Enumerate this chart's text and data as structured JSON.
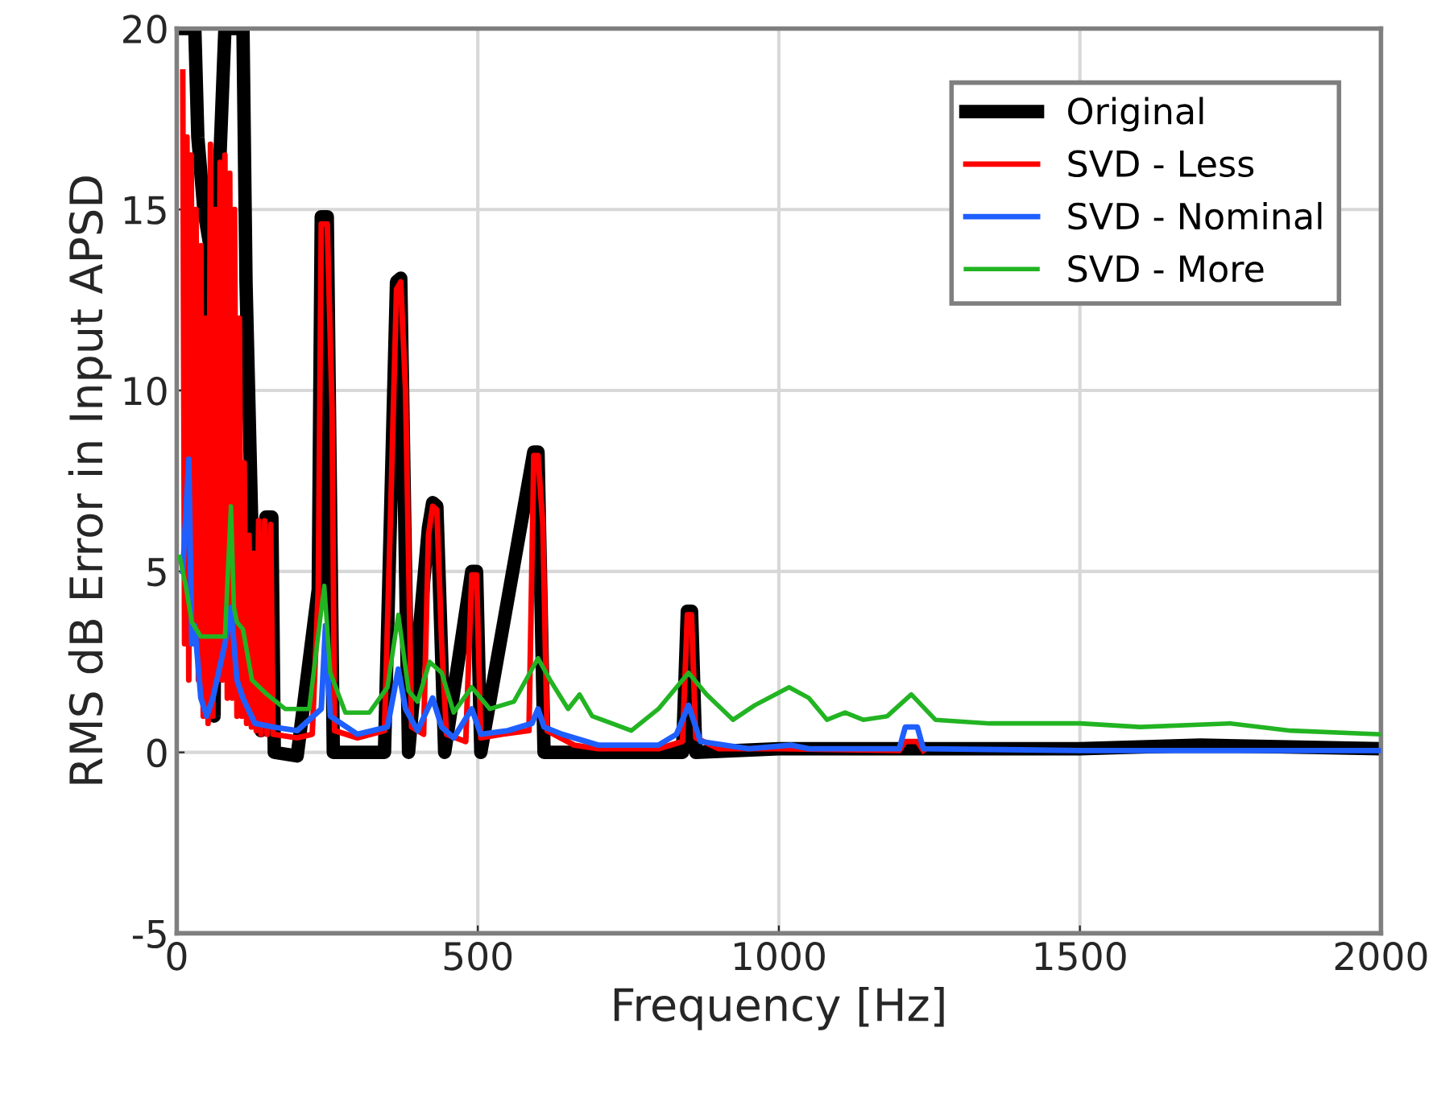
{
  "chart_data": {
    "type": "line",
    "xlabel": "Frequency [Hz]",
    "ylabel": "RMS dB Error in Input APSD",
    "xlim": [
      0,
      2000
    ],
    "xticks": [
      0,
      500,
      1000,
      1500,
      2000
    ],
    "ylim": [
      -5,
      20
    ],
    "yticks": [
      -5,
      0,
      5,
      10,
      15,
      20
    ],
    "grid": true,
    "legend": "top right",
    "line_style": "solid",
    "marker": "none",
    "series": [
      {
        "name": "Original",
        "color": "#000000",
        "x": [
          5,
          30,
          35,
          45,
          55,
          62,
          66,
          80,
          110,
          115,
          125,
          135,
          140,
          148,
          158,
          162,
          200,
          235,
          240,
          250,
          260,
          345,
          355,
          365,
          372,
          385,
          418,
          425,
          432,
          445,
          490,
          498,
          505,
          593,
          600,
          610,
          840,
          848,
          855,
          862,
          1000,
          1200,
          1500,
          1700,
          2000
        ],
        "values": [
          20,
          20,
          17,
          15,
          14,
          1,
          14,
          20,
          20,
          13,
          6,
          5.6,
          0.6,
          6.5,
          6.5,
          0,
          -0.1,
          4.5,
          14.8,
          14.8,
          0,
          0,
          6.5,
          13,
          13.1,
          0,
          6.2,
          6.9,
          6.8,
          0,
          5,
          5,
          0,
          8.3,
          8.3,
          0,
          0,
          3.9,
          3.9,
          0,
          0.1,
          0.1,
          0.1,
          0.2,
          0.1
        ]
      },
      {
        "name": "SVD - Less",
        "color": "#ff0000",
        "x": [
          10,
          13,
          17,
          20,
          24,
          28,
          32,
          36,
          40,
          44,
          48,
          52,
          56,
          60,
          64,
          68,
          72,
          76,
          80,
          84,
          88,
          92,
          96,
          100,
          104,
          108,
          112,
          116,
          120,
          124,
          128,
          132,
          136,
          140,
          146,
          150,
          156,
          160,
          200,
          225,
          235,
          240,
          250,
          258,
          262,
          300,
          345,
          355,
          365,
          372,
          380,
          390,
          410,
          418,
          425,
          432,
          440,
          448,
          480,
          490,
          498,
          505,
          540,
          585,
          593,
          600,
          608,
          615,
          660,
          700,
          800,
          840,
          848,
          855,
          862,
          900,
          1000,
          1200,
          1210,
          1230,
          1240
        ],
        "values": [
          18.8,
          3,
          17,
          2,
          16.5,
          3,
          15,
          2,
          14,
          1,
          12,
          0.8,
          16.8,
          1,
          15,
          2,
          16.3,
          2,
          16.5,
          1.5,
          16,
          1.5,
          15,
          1,
          12,
          1,
          8,
          0.8,
          6,
          0.7,
          5.5,
          0.6,
          6.4,
          0.5,
          6.4,
          0.5,
          6.3,
          0.5,
          0.4,
          0.5,
          4.5,
          14.6,
          14.6,
          9.5,
          0.6,
          0.4,
          0.6,
          6.5,
          12.8,
          13,
          10,
          0.7,
          0.5,
          6,
          6.8,
          6.7,
          3,
          0.5,
          0.3,
          4.9,
          4.9,
          0.4,
          0.5,
          0.6,
          8.2,
          8.2,
          6.3,
          0.6,
          0.2,
          0.1,
          0.1,
          0.3,
          3.8,
          3.8,
          0.4,
          0.1,
          0.1,
          0.05,
          0.3,
          0.3,
          0.05
        ]
      },
      {
        "name": "SVD - Nominal",
        "color": "#1f5fff",
        "x": [
          10,
          20,
          25,
          30,
          40,
          50,
          60,
          80,
          90,
          100,
          110,
          130,
          160,
          200,
          240,
          247,
          255,
          300,
          350,
          368,
          380,
          400,
          425,
          440,
          460,
          490,
          505,
          550,
          590,
          600,
          610,
          640,
          660,
          700,
          800,
          830,
          850,
          870,
          950,
          1020,
          1050,
          1200,
          1210,
          1230,
          1240,
          1500,
          2000
        ],
        "values": [
          5,
          8.1,
          3,
          3.5,
          1.5,
          1,
          1.5,
          3,
          4,
          2,
          1.5,
          0.8,
          0.7,
          0.6,
          1.2,
          3.5,
          1,
          0.5,
          0.7,
          2.3,
          1.2,
          0.6,
          1.5,
          0.7,
          0.4,
          1.2,
          0.5,
          0.6,
          0.8,
          1.2,
          0.7,
          0.5,
          0.4,
          0.2,
          0.2,
          0.5,
          1.3,
          0.3,
          0.1,
          0.2,
          0.1,
          0.1,
          0.7,
          0.7,
          0.1,
          0.05,
          0.05
        ]
      },
      {
        "name": "SVD - More",
        "color": "#22b422",
        "x": [
          5,
          15,
          25,
          40,
          60,
          80,
          90,
          95,
          100,
          110,
          125,
          150,
          180,
          220,
          245,
          255,
          280,
          320,
          350,
          368,
          385,
          400,
          420,
          440,
          460,
          490,
          500,
          520,
          560,
          600,
          620,
          650,
          669,
          690,
          755,
          800,
          850,
          880,
          924,
          960,
          1017,
          1050,
          1080,
          1110,
          1140,
          1180,
          1220,
          1260,
          1350,
          1450,
          1500,
          1600,
          1750,
          1850,
          2000
        ],
        "values": [
          5.4,
          4.6,
          3.6,
          3.2,
          3.2,
          3.2,
          6.8,
          4,
          3.6,
          3.4,
          2,
          1.6,
          1.2,
          1.2,
          4.6,
          2.2,
          1.1,
          1.1,
          1.8,
          3.8,
          1.7,
          1.4,
          2.5,
          2.2,
          1.1,
          1.8,
          1.6,
          1.2,
          1.4,
          2.6,
          2,
          1.2,
          1.6,
          1,
          0.6,
          1.2,
          2.2,
          1.6,
          0.9,
          1.3,
          1.8,
          1.5,
          0.9,
          1.1,
          0.9,
          1,
          1.6,
          0.9,
          0.8,
          0.8,
          0.8,
          0.7,
          0.8,
          0.6,
          0.5
        ]
      }
    ]
  }
}
